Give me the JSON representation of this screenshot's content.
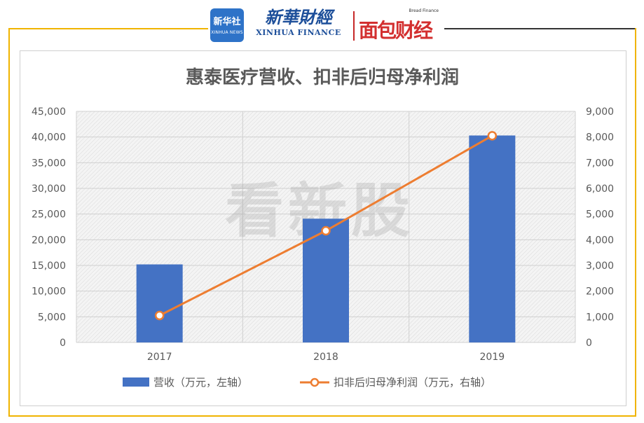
{
  "logos": {
    "xinhua_badge_cn": "新华社",
    "xinhua_badge_en": "XINHUA NEWS",
    "xinhua_finance_cn": "新華財經",
    "xinhua_finance_en": "XINHUA FINANCE",
    "bread_finance_en": "Bread Finance",
    "bread_finance_cn": "面包财经"
  },
  "watermark": "看新股",
  "colors": {
    "bar": "#4472c4",
    "line": "#ed7d31",
    "frame": "#f0b400"
  },
  "chart_data": {
    "type": "bar",
    "title": "惠泰医疗营收、扣非后归母净利润",
    "categories": [
      "2017",
      "2018",
      "2019"
    ],
    "series": [
      {
        "name": "营收（万元，左轴）",
        "type": "bar",
        "axis": "left",
        "values": [
          15200,
          24100,
          40300
        ]
      },
      {
        "name": "扣非后归母净利润（万元，右轴）",
        "type": "line",
        "axis": "right",
        "values": [
          1050,
          4350,
          8050
        ]
      }
    ],
    "y_left": {
      "min": 0,
      "max": 45000,
      "ticks": [
        "0",
        "5,000",
        "10,000",
        "15,000",
        "20,000",
        "25,000",
        "30,000",
        "35,000",
        "40,000",
        "45,000"
      ]
    },
    "y_right": {
      "min": 0,
      "max": 9000,
      "ticks": [
        "0",
        "1,000",
        "2,000",
        "3,000",
        "4,000",
        "5,000",
        "6,000",
        "7,000",
        "8,000",
        "9,000"
      ]
    },
    "grid": true,
    "legend_position": "bottom"
  }
}
